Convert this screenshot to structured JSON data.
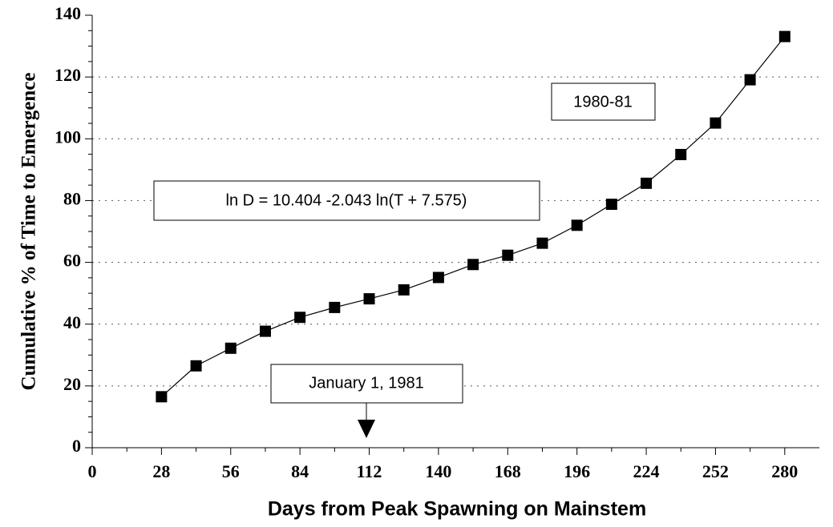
{
  "chart_data": {
    "type": "line",
    "xlabel": "Days from Peak Spawning on Mainstem",
    "ylabel": "Cumulative % of Time to Emergence",
    "annotations": [
      "1980-81",
      "ln D = 10.404 -2.043 ln(T + 7.575)",
      "January 1, 1981"
    ],
    "x": [
      28,
      42,
      56,
      70,
      84,
      98,
      112,
      126,
      140,
      154,
      168,
      182,
      196,
      210,
      224,
      238,
      252,
      266,
      280
    ],
    "series": [
      {
        "name": "1980-81",
        "color": "#000000",
        "values": [
          16.5,
          26.5,
          32.2,
          37.7,
          42.2,
          45.4,
          48.2,
          51.1,
          55.1,
          59.3,
          62.3,
          66.2,
          72.0,
          78.8,
          85.6,
          94.9,
          105.1,
          119.1,
          133.1
        ]
      }
    ],
    "xlim": [
      0,
      294
    ],
    "xticks": [
      0,
      28,
      56,
      84,
      112,
      140,
      168,
      196,
      224,
      252,
      280
    ],
    "ylim": [
      0,
      140
    ],
    "yticks": [
      0,
      20,
      40,
      60,
      80,
      100,
      120,
      140
    ],
    "grid": true
  }
}
